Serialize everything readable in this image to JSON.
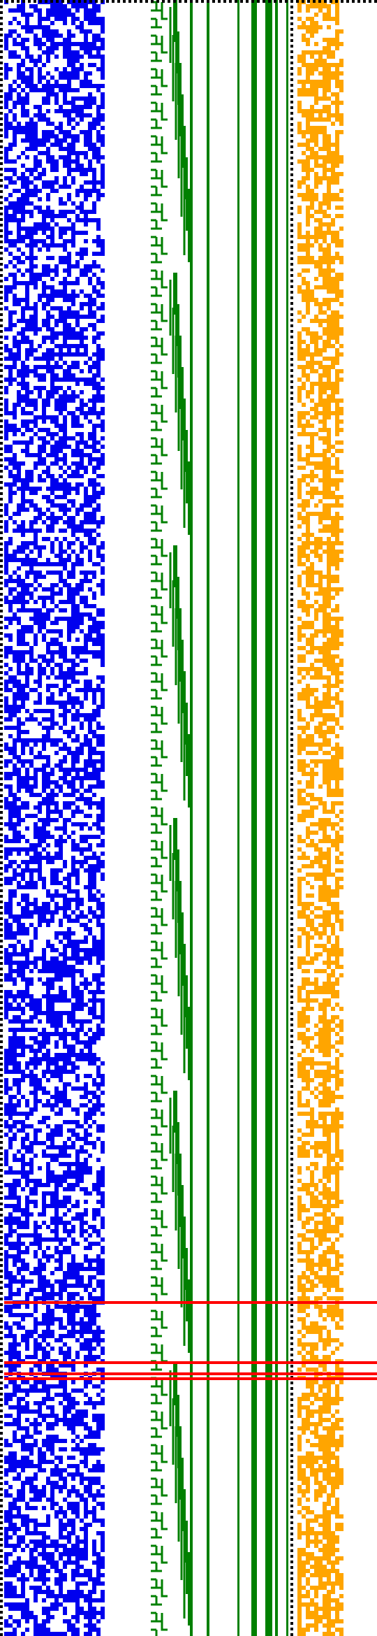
{
  "colors": {
    "background": "#ffffff",
    "left_pixels": "#0000ee",
    "tree_lines": "#008000",
    "right_pixels": "#ffa500",
    "dotted_border": "#000000",
    "highlight_rows": "#ff0000"
  },
  "structure": {
    "bit_columns_left": 24,
    "bit_columns_right": 11,
    "rows": 390,
    "vertical_bus_lines": 7,
    "highlight_row_count": 4
  }
}
